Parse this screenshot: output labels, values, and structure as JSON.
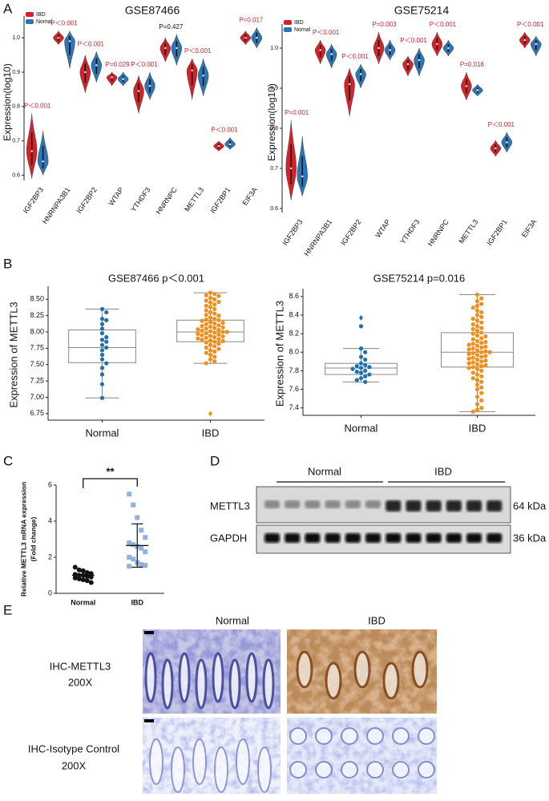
{
  "panel_labels": [
    "A",
    "B",
    "C",
    "D",
    "E"
  ],
  "chart_data": [
    {
      "type": "violin",
      "title": "GSE87466",
      "ylabel": "Expression(log10)",
      "categories": [
        "IGF2BP3",
        "HNRNPA3B1",
        "IGF2BP2",
        "WTAP",
        "YTHDF3",
        "HNRNPC",
        "METTL3",
        "IGF2BP1",
        "EIF3A"
      ],
      "series": [
        {
          "name": "IBD",
          "color": "#d2232a",
          "values": [
            0.67,
            1.0,
            0.9,
            0.885,
            0.845,
            0.97,
            0.905,
            0.685,
            1.0
          ],
          "low": [
            0.59,
            0.98,
            0.84,
            0.86,
            0.78,
            0.93,
            0.82,
            0.67,
            0.98
          ],
          "high": [
            0.78,
            1.02,
            0.95,
            0.9,
            0.89,
            1.0,
            0.94,
            0.7,
            1.02
          ]
        },
        {
          "name": "Nomal",
          "color": "#2e75b6",
          "values": [
            0.64,
            0.99,
            0.92,
            0.88,
            0.86,
            0.97,
            0.89,
            0.69,
            1.0
          ],
          "low": [
            0.6,
            0.91,
            0.87,
            0.86,
            0.82,
            0.92,
            0.83,
            0.675,
            0.97
          ],
          "high": [
            0.73,
            1.02,
            0.96,
            0.9,
            0.9,
            1.01,
            0.94,
            0.71,
            1.03
          ]
        }
      ],
      "annotations": [
        {
          "text": "P＜0.001",
          "color": "#d2232a"
        },
        {
          "text": "P＜0.001",
          "color": "#d2232a"
        },
        {
          "text": "P＜0.001",
          "color": "#d2232a"
        },
        {
          "text": "P=0.029",
          "color": "#d2232a"
        },
        {
          "text": "P＜0.001",
          "color": "#d2232a"
        },
        {
          "text": "P=0.427",
          "color": "#111111"
        },
        {
          "text": "P＜0.001",
          "color": "#d2232a"
        },
        {
          "text": "P＜0.001",
          "color": "#d2232a"
        },
        {
          "text": "P=0.017",
          "color": "#d2232a"
        }
      ],
      "ylim": [
        0.585,
        1.04
      ],
      "yticks": [
        0.6,
        0.7,
        0.8,
        0.9,
        {
          "value": 1,
          "label": "1.0"
        }
      ],
      "legend": "top-left"
    },
    {
      "type": "violin",
      "title": "GSE75214",
      "ylabel": "Expression(log10)",
      "categories": [
        "IGF2BP3",
        "HNRNPA3B1",
        "IGF2BP2",
        "WTAP",
        "YTHDF3",
        "HNRNPC",
        "METTL3",
        "IGF2BP1",
        "EIF3A"
      ],
      "series": [
        {
          "name": "IBD",
          "color": "#d2232a",
          "values": [
            0.7,
            0.995,
            0.91,
            1.0,
            0.96,
            1.01,
            0.905,
            0.75,
            1.02
          ],
          "low": [
            0.62,
            0.96,
            0.83,
            0.96,
            0.93,
            0.98,
            0.87,
            0.73,
            1.0
          ],
          "high": [
            0.82,
            1.02,
            0.95,
            1.04,
            0.98,
            1.04,
            0.94,
            0.77,
            1.04
          ]
        },
        {
          "name": "Nomal",
          "color": "#2e75b6",
          "values": [
            0.68,
            0.985,
            0.935,
            0.995,
            0.97,
            1.0,
            0.895,
            0.765,
            1.01
          ],
          "low": [
            0.63,
            0.95,
            0.9,
            0.97,
            0.93,
            0.98,
            0.88,
            0.74,
            0.98
          ],
          "high": [
            0.78,
            1.01,
            0.96,
            1.02,
            1.0,
            1.02,
            0.91,
            0.79,
            1.03
          ]
        }
      ],
      "annotations": [
        {
          "text": "P=0.001",
          "color": "#d2232a"
        },
        {
          "text": "P＜0.001",
          "color": "#d2232a"
        },
        {
          "text": "P＜0.001",
          "color": "#d2232a"
        },
        {
          "text": "P=0.003",
          "color": "#d2232a"
        },
        {
          "text": "P＜0.001",
          "color": "#d2232a"
        },
        {
          "text": "P＜0.001",
          "color": "#d2232a"
        },
        {
          "text": "P=0.016",
          "color": "#d2232a"
        },
        {
          "text": "P＜0.001",
          "color": "#d2232a"
        },
        {
          "text": "P＜0.001",
          "color": "#d2232a"
        }
      ],
      "ylim": [
        0.59,
        1.04
      ],
      "yticks": [
        0.6,
        0.7,
        0.8,
        0.9,
        {
          "value": 1,
          "label": "1.0"
        }
      ],
      "legend": "top-left"
    },
    {
      "type": "box",
      "title": "GSE87466 p＜0.001",
      "ylabel": "Expression of METTL3",
      "groups": [
        {
          "name": "Normal",
          "color": "#1f6fb4",
          "q1": 7.53,
          "median": 7.76,
          "q3": 8.03,
          "whisker_low": 6.99,
          "whisker_high": 8.35,
          "outliers": [],
          "points": [
            8.35,
            8.3,
            8.2,
            8.18,
            8.12,
            8.05,
            7.98,
            7.92,
            7.88,
            7.85,
            7.8,
            7.76,
            7.72,
            7.65,
            7.58,
            7.52,
            7.45,
            7.35,
            7.2,
            6.99
          ]
        },
        {
          "name": "IBD",
          "color": "#f28e1c",
          "q1": 7.85,
          "median": 8.0,
          "q3": 8.18,
          "whisker_low": 7.52,
          "whisker_high": 8.6,
          "outliers": [
            6.75
          ],
          "points": [
            8.6,
            8.58,
            8.56,
            8.55,
            8.52,
            8.5,
            8.48,
            8.46,
            8.45,
            8.42,
            8.4,
            8.38,
            8.35,
            8.33,
            8.3,
            8.28,
            8.26,
            8.25,
            8.22,
            8.2,
            8.19,
            8.18,
            8.17,
            8.15,
            8.14,
            8.13,
            8.12,
            8.1,
            8.09,
            8.08,
            8.07,
            8.06,
            8.05,
            8.04,
            8.03,
            8.02,
            8.01,
            8.0,
            8.0,
            7.99,
            7.98,
            7.97,
            7.96,
            7.95,
            7.94,
            7.93,
            7.92,
            7.91,
            7.9,
            7.89,
            7.88,
            7.87,
            7.86,
            7.85,
            7.84,
            7.82,
            7.8,
            7.78,
            7.76,
            7.74,
            7.72,
            7.7,
            7.68,
            7.65,
            7.62,
            7.58,
            7.55,
            7.52
          ]
        }
      ],
      "ylim": [
        6.65,
        8.65
      ],
      "yticks": [
        6.75,
        {
          "value": 7,
          "label": "7.00"
        },
        7.25,
        {
          "value": 7.5,
          "label": "7.50"
        },
        7.75,
        {
          "value": 8,
          "label": "8.00"
        },
        8.25,
        {
          "value": 8.5,
          "label": "8.50"
        }
      ]
    },
    {
      "type": "box",
      "title": "GSE75214 p=0.016",
      "ylabel": "Expression of METTL3",
      "groups": [
        {
          "name": "Normal",
          "color": "#1f6fb4",
          "q1": 7.76,
          "median": 7.83,
          "q3": 7.88,
          "whisker_low": 7.68,
          "whisker_high": 8.04,
          "outliers": [
            8.37
          ],
          "points": [
            8.28,
            8.04,
            8.0,
            7.95,
            7.92,
            7.88,
            7.86,
            7.85,
            7.84,
            7.83,
            7.82,
            7.8,
            7.79,
            7.78,
            7.76,
            7.74,
            7.72,
            7.7,
            7.68
          ]
        },
        {
          "name": "IBD",
          "color": "#f28e1c",
          "q1": 7.84,
          "median": 8.0,
          "q3": 8.21,
          "whisker_low": 7.36,
          "whisker_high": 8.62,
          "outliers": [],
          "points": [
            8.62,
            8.58,
            8.55,
            8.52,
            8.5,
            8.48,
            8.45,
            8.43,
            8.4,
            8.38,
            8.36,
            8.34,
            8.32,
            8.3,
            8.28,
            8.26,
            8.25,
            8.23,
            8.21,
            8.2,
            8.18,
            8.17,
            8.15,
            8.14,
            8.12,
            8.11,
            8.1,
            8.09,
            8.08,
            8.07,
            8.06,
            8.05,
            8.04,
            8.03,
            8.02,
            8.01,
            8.0,
            8.0,
            7.99,
            7.98,
            7.97,
            7.96,
            7.95,
            7.94,
            7.93,
            7.92,
            7.91,
            7.9,
            7.89,
            7.88,
            7.87,
            7.86,
            7.85,
            7.84,
            7.83,
            7.82,
            7.8,
            7.78,
            7.76,
            7.74,
            7.72,
            7.7,
            7.68,
            7.65,
            7.62,
            7.6,
            7.56,
            7.52,
            7.48,
            7.44,
            7.4,
            7.38,
            7.36
          ]
        }
      ],
      "ylim": [
        7.32,
        8.65
      ],
      "yticks": [
        7.4,
        7.6,
        7.8,
        {
          "value": 8,
          "label": "8.0"
        },
        8.2,
        8.4,
        8.6
      ]
    },
    {
      "type": "dot",
      "ylabel": [
        "Relative METTL3 mRNA expression",
        "(Fold change)"
      ],
      "significance": "**",
      "groups": [
        {
          "name": "Normal",
          "color": "#111111",
          "marker": "circle",
          "mean": 1.0,
          "sd": 0.2,
          "points": [
            1.45,
            1.3,
            1.25,
            1.15,
            1.1,
            1.05,
            1.0,
            1.0,
            0.95,
            0.9,
            0.85,
            0.8,
            0.75,
            0.7,
            0.6
          ]
        },
        {
          "name": "IBD",
          "color": "#8fb3dc",
          "marker": "square",
          "mean": 2.65,
          "sd": 1.2,
          "points": [
            5.5,
            4.9,
            4.2,
            3.5,
            3.1,
            2.8,
            2.7,
            2.6,
            2.5,
            2.3,
            2.0,
            1.9,
            1.7,
            1.6,
            1.55,
            1.5
          ]
        }
      ],
      "ylim": [
        0,
        6
      ],
      "yticks": [
        0,
        2,
        4,
        6
      ]
    }
  ],
  "blot": {
    "groups": [
      "Normal",
      "IBD"
    ],
    "rows": [
      {
        "label": "METTL3",
        "size": "64 kDa"
      },
      {
        "label": "GAPDH",
        "size": "36 kDa"
      }
    ]
  },
  "ihc": {
    "columns": [
      "Normal",
      "IBD"
    ],
    "rows": [
      {
        "label": "IHC-METTL3",
        "magnification": "200X"
      },
      {
        "label": "IHC-Isotype Control",
        "magnification": "200X"
      }
    ]
  }
}
